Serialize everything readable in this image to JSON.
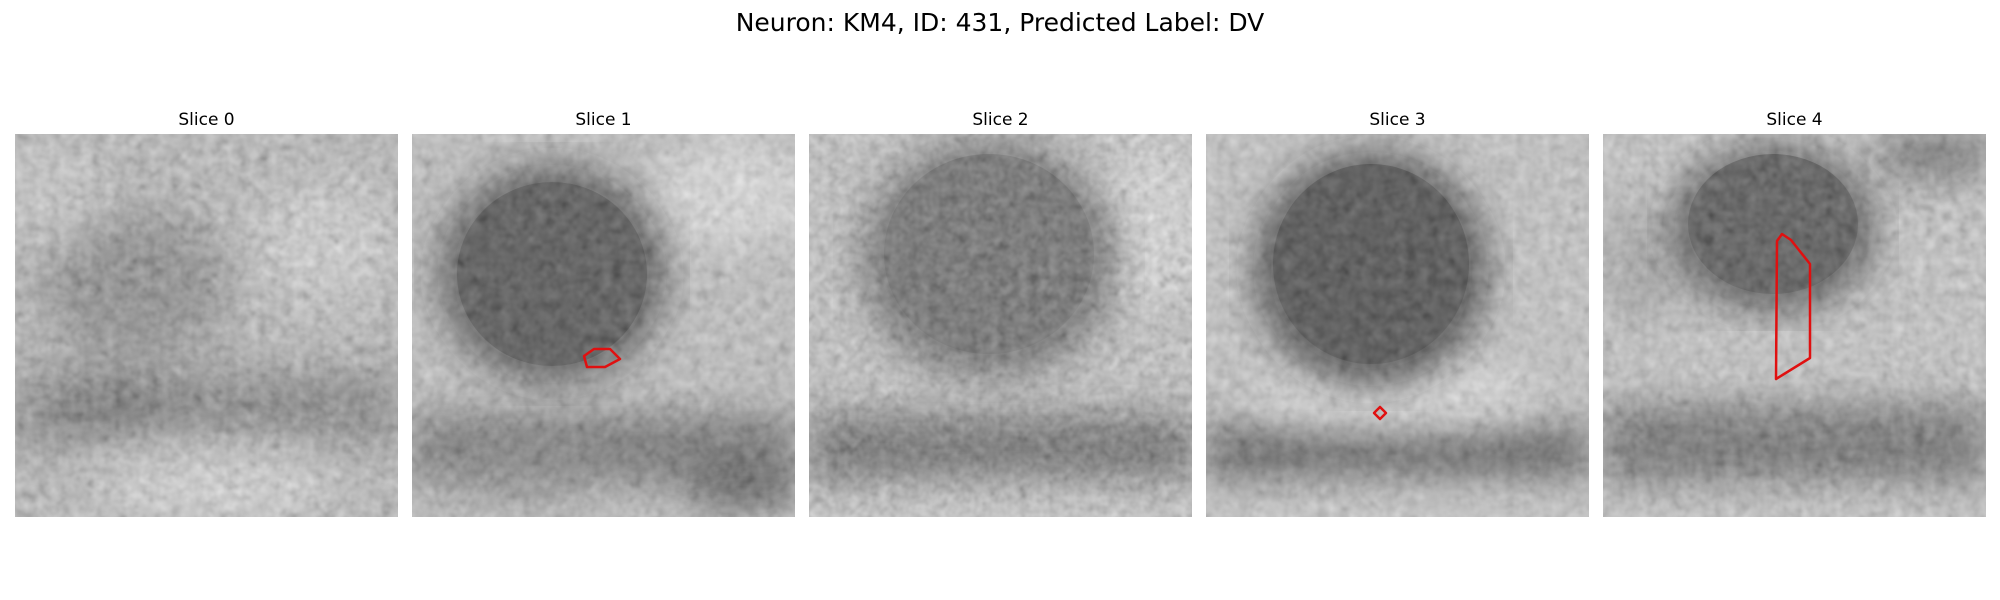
{
  "figure": {
    "title": "Neuron: KM4, ID: 431, Predicted Label: DV"
  },
  "colors": {
    "contour": "#e01010",
    "background": "#ffffff"
  },
  "panels": [
    {
      "title": "Slice 0",
      "contour": "none"
    },
    {
      "title": "Slice 1",
      "contour": "small outline at lower edge of dark cell body"
    },
    {
      "title": "Slice 2",
      "contour": "none"
    },
    {
      "title": "Slice 3",
      "contour": "tiny diamond below dark cell body"
    },
    {
      "title": "Slice 4",
      "contour": "tall narrow outline through dark cell body"
    }
  ]
}
